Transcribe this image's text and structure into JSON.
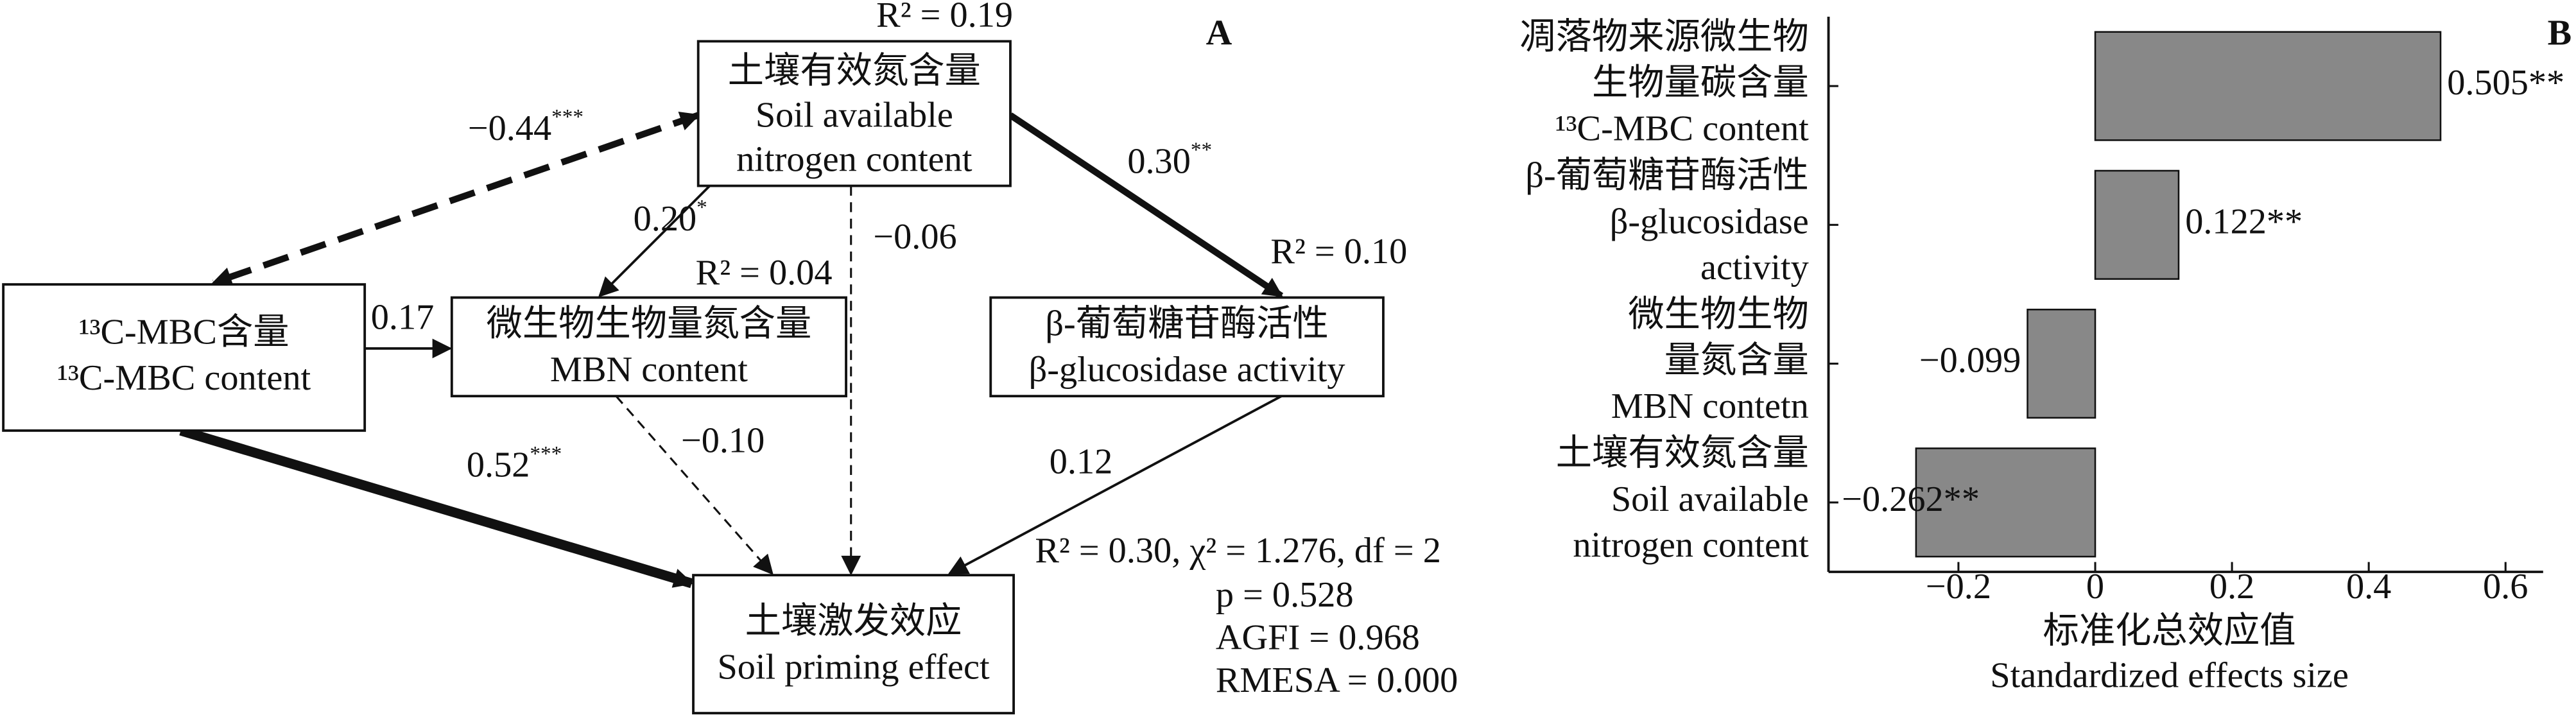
{
  "diagram": {
    "label": "A",
    "nodes": [
      {
        "lines": [
          "土壤有效氮含量",
          "Soil available",
          "nitrogen content"
        ],
        "r2": "R² = 0.19"
      },
      {
        "lines": [
          "¹³C-MBC含量",
          "¹³C-MBC content"
        ]
      },
      {
        "lines": [
          "微生物生物量氮含量",
          "MBN content"
        ],
        "r2": "R² = 0.04"
      },
      {
        "lines": [
          "β-葡萄糖苷酶活性",
          "β-glucosidase activity"
        ],
        "r2": "R² = 0.10"
      },
      {
        "lines": [
          "土壤激发效应",
          "Soil priming effect"
        ]
      }
    ],
    "edges": [
      {
        "coef": "−0.44",
        "sig": "***"
      },
      {
        "coef": "0.30",
        "sig": "**"
      },
      {
        "coef": "0.20",
        "sig": "*"
      },
      {
        "coef": "−0.06"
      },
      {
        "coef": "0.17"
      },
      {
        "coef": "0.52",
        "sig": "***"
      },
      {
        "coef": "−0.10"
      },
      {
        "coef": "0.12"
      }
    ],
    "fit": [
      "R² = 0.30, χ² = 1.276, df = 2",
      "p = 0.528",
      "AGFI = 0.968",
      "RMESA = 0.000"
    ]
  },
  "chart_data": {
    "type": "barh",
    "panel_label": "B",
    "categories": [
      [
        "凋落物来源微生物",
        "生物量碳含量",
        "¹³C-MBC content"
      ],
      [
        "β-葡萄糖苷酶活性",
        "β-glucosidase",
        "activity"
      ],
      [
        "微生物生物",
        "量氮含量",
        "MBN contetn"
      ],
      [
        "土壤有效氮含量",
        "Soil available",
        "nitrogen content"
      ]
    ],
    "values": [
      0.505,
      0.122,
      -0.099,
      -0.262
    ],
    "value_labels": [
      "0.505**",
      "0.122**",
      "−0.099",
      "−0.262**"
    ],
    "color": "#888888",
    "xlim": [
      -0.39,
      0.655
    ],
    "xticks": [
      {
        "value": -0.2,
        "label": "−0.2"
      },
      0,
      0.2,
      0.4,
      0.6
    ],
    "xlabel": [
      "标准化总效应值",
      "Standardized effects size"
    ]
  }
}
